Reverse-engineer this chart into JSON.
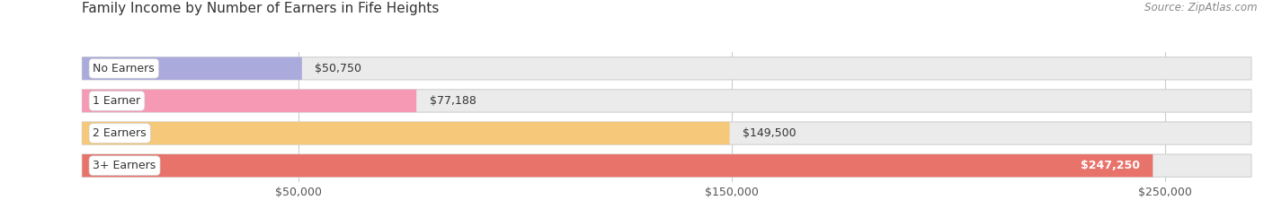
{
  "title": "Family Income by Number of Earners in Fife Heights",
  "source": "Source: ZipAtlas.com",
  "categories": [
    "No Earners",
    "1 Earner",
    "2 Earners",
    "3+ Earners"
  ],
  "values": [
    50750,
    77188,
    149500,
    247250
  ],
  "bar_colors": [
    "#aaaadd",
    "#f599b4",
    "#f5c87a",
    "#e8736a"
  ],
  "bar_bg_color": "#ebebeb",
  "background_color": "#ffffff",
  "xlim_max": 270000,
  "xticks": [
    50000,
    150000,
    250000
  ],
  "xtick_labels": [
    "$50,000",
    "$150,000",
    "$250,000"
  ],
  "label_fontsize": 9,
  "value_fontsize": 9,
  "title_fontsize": 11,
  "source_fontsize": 8.5
}
